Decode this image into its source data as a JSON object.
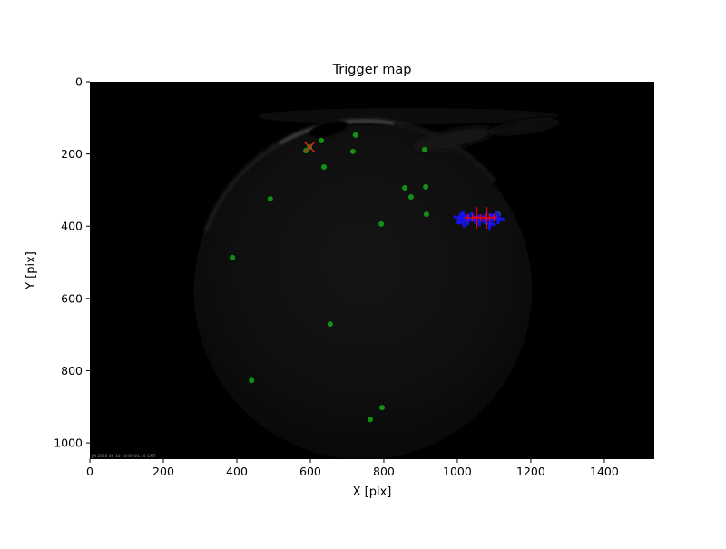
{
  "figure": {
    "title": "Trigger map",
    "xlabel": "X [pix]",
    "ylabel": "Y [pix]"
  },
  "chart_data": {
    "type": "scatter",
    "title": "Trigger map",
    "xlabel": "X [pix]",
    "ylabel": "Y [pix]",
    "xlim": [
      0,
      1536
    ],
    "ylim": [
      0,
      1045
    ],
    "y_axis_inverted": true,
    "xticks": [
      0,
      200,
      400,
      600,
      800,
      1000,
      1200,
      1400
    ],
    "yticks": [
      0,
      200,
      400,
      600,
      800,
      1000
    ],
    "grid": false,
    "legend": null,
    "background_description": "dark all-sky camera frame with faint circular dome and cloud highlights along top rim",
    "dome": {
      "cx": 743,
      "cy": 578,
      "r": 460
    },
    "embedded_timestamp": "JM 2020-06-10 10:00:01.10 GMT",
    "colors": {
      "trigger_green": "#129212",
      "cross_orange_red": "#d02818",
      "cluster_red": "#ff0000",
      "cluster_red_large": "#e80000",
      "cluster_blue": "#1414e8",
      "plot_bg": "#000000",
      "figure_bg": "#ffffff"
    },
    "series": [
      {
        "name": "triggers-green",
        "marker": "circle",
        "color": "#129212",
        "points": [
          [
            630,
            163
          ],
          [
            723,
            148
          ],
          [
            598,
            181
          ],
          [
            588,
            191
          ],
          [
            716,
            193
          ],
          [
            911,
            188
          ],
          [
            637,
            236
          ],
          [
            857,
            294
          ],
          [
            914,
            291
          ],
          [
            874,
            319
          ],
          [
            916,
            367
          ],
          [
            1111,
            367
          ],
          [
            793,
            394
          ],
          [
            491,
            324
          ],
          [
            388,
            487
          ],
          [
            654,
            671
          ],
          [
            440,
            827
          ],
          [
            795,
            902
          ],
          [
            763,
            935
          ]
        ]
      },
      {
        "name": "flagged-cross",
        "marker": "x",
        "color": "#d02818",
        "points": [
          [
            598,
            181
          ]
        ]
      },
      {
        "name": "cluster-blue-markers",
        "marker": "bold-plus",
        "color": "#1414e8",
        "points": [
          [
            1005,
            378
          ],
          [
            1018,
            374
          ],
          [
            1030,
            382
          ],
          [
            1044,
            377
          ],
          [
            1060,
            384
          ],
          [
            1075,
            376
          ],
          [
            1090,
            380
          ],
          [
            1102,
            373
          ],
          [
            1112,
            379
          ],
          [
            1015,
            388
          ],
          [
            1089,
            394
          ]
        ]
      },
      {
        "name": "cluster-red-plus",
        "marker": "plus",
        "color": "#ff0000",
        "points": [
          [
            1028,
            376
          ],
          [
            1041,
            377
          ],
          [
            1053,
            375
          ],
          [
            1064,
            377
          ],
          [
            1076,
            376
          ],
          [
            1088,
            377
          ],
          [
            1100,
            375
          ]
        ]
      },
      {
        "name": "cluster-red-plus-large",
        "marker": "plus-large",
        "color": "#e80000",
        "points": [
          [
            1053,
            377
          ],
          [
            1080,
            377
          ]
        ]
      }
    ]
  }
}
